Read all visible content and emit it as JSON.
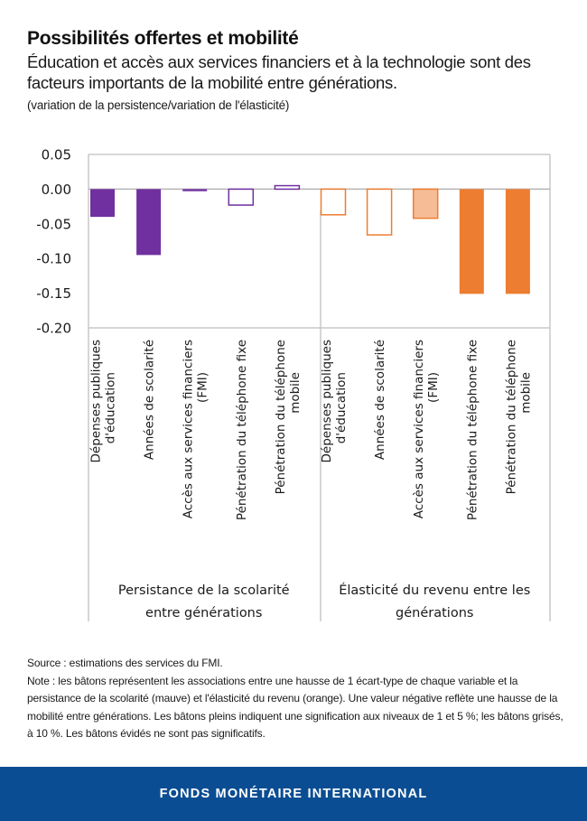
{
  "header": {
    "title": "Possibilités offertes et mobilité",
    "subtitle": "Éducation et accès aux services financiers et à la technologie sont des facteurs importants de la mobilité entre générations.",
    "units": "(variation de la persistence/variation de l'élasticité)"
  },
  "chart_data": {
    "type": "bar",
    "title": "Possibilités offertes et mobilité",
    "ylabel": "",
    "xlabel": "",
    "ylim": [
      -0.2,
      0.05
    ],
    "yticks": [
      0.05,
      0.0,
      -0.05,
      -0.1,
      -0.15,
      -0.2
    ],
    "ytick_labels": [
      "0.05",
      "0.00",
      "-0.05",
      "-0.10",
      "-0.15",
      "-0.20"
    ],
    "grid": false,
    "groups": [
      {
        "name": "Persistance de la scolarité entre générations",
        "name_lines": [
          "Persistance de la scolarité",
          "entre générations"
        ],
        "color": "#7030a0",
        "light_color": "#b28ed0",
        "categories": [
          {
            "label_lines": [
              "Dépenses publiques",
              "d'éducation"
            ],
            "value": -0.04,
            "style": "filled"
          },
          {
            "label_lines": [
              "Années de scolarité"
            ],
            "value": -0.095,
            "style": "filled"
          },
          {
            "label_lines": [
              "Accès aux services financiers",
              "(FMI)"
            ],
            "value": -0.003,
            "style": "filled"
          },
          {
            "label_lines": [
              "Pénétration du téléphone fixe"
            ],
            "value": -0.023,
            "style": "hollow"
          },
          {
            "label_lines": [
              "Pénétration du téléphone",
              "mobile"
            ],
            "value": 0.005,
            "style": "hollow"
          }
        ]
      },
      {
        "name": "Élasticité du revenu entre les générations",
        "name_lines": [
          "Élasticité du revenu entre les",
          "générations"
        ],
        "color": "#ed7d31",
        "light_color": "#f5bc96",
        "categories": [
          {
            "label_lines": [
              "Dépenses publiques",
              "d'éducation"
            ],
            "value": -0.037,
            "style": "hollow"
          },
          {
            "label_lines": [
              "Années de scolarité"
            ],
            "value": -0.066,
            "style": "hollow"
          },
          {
            "label_lines": [
              "Accès aux services financiers",
              "(FMI)"
            ],
            "value": -0.042,
            "style": "shaded"
          },
          {
            "label_lines": [
              "Pénétration du téléphone fixe"
            ],
            "value": -0.151,
            "style": "filled"
          },
          {
            "label_lines": [
              "Pénétration du téléphone",
              "mobile"
            ],
            "value": -0.151,
            "style": "filled"
          }
        ]
      }
    ],
    "legend": "none"
  },
  "notes": {
    "source": "Source : estimations des services du FMI.",
    "note": "Note : les bâtons représentent les associations entre une hausse de 1 écart-type de chaque variable et la persistance de la scolarité (mauve) et l'élasticité du revenu (orange). Une valeur négative reflète une hausse de la mobilité entre générations. Les bâtons pleins indiquent une signification aux niveaux de 1 et 5 %; les bâtons grisés, à 10 %. Les bâtons évidés ne sont pas significatifs."
  },
  "footer": {
    "brand": "FONDS MONÉTAIRE INTERNATIONAL",
    "color": "#0b4d92"
  }
}
